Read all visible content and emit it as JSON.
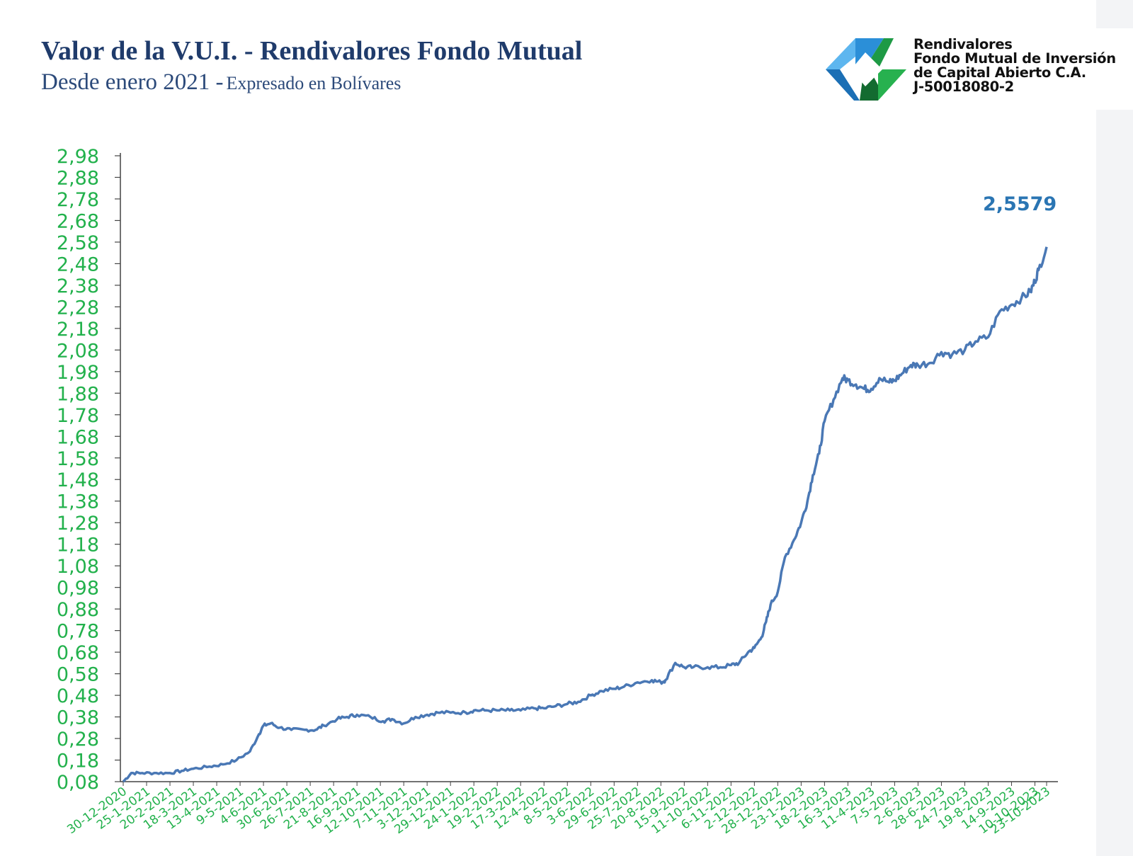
{
  "header": {
    "title": "Valor de la V.U.I. - Rendivalores Fondo Mutual",
    "subtitle_main": "Desde enero 2021 -",
    "subtitle_small": "Expresado en Bolívares"
  },
  "company": {
    "line1": "Rendivalores",
    "line2": "Fondo Mutual de Inversión",
    "line3": "de Capital Abierto C.A.",
    "line4": "J-50018080-2"
  },
  "colors": {
    "title": "#1f3b6b",
    "axis_labels": "#22b14c",
    "line": "#4a78b5",
    "annotation": "#2a75b3",
    "logo_blue": "#2b8fd8",
    "logo_green": "#1e9a45"
  },
  "chart_data": {
    "type": "line",
    "title": "Valor de la V.U.I. - Rendivalores Fondo Mutual",
    "xlabel": "",
    "ylabel": "",
    "x_range": [
      "30-12-2020",
      "23-10-2023"
    ],
    "ylim": [
      0.08,
      2.98
    ],
    "y_ticks": [
      "2,98",
      "2,88",
      "2,78",
      "2,68",
      "2,58",
      "2,48",
      "2,38",
      "2,28",
      "2,18",
      "2,08",
      "1,98",
      "1,88",
      "1,78",
      "1,68",
      "1,58",
      "1,48",
      "1,38",
      "1,28",
      "1,18",
      "1,08",
      "0,98",
      "0,88",
      "0,78",
      "0,68",
      "0,58",
      "0,48",
      "0,38",
      "0,28",
      "0,18",
      "0,08"
    ],
    "x_tick_labels": [
      "30-12-2020",
      "25-1-2021",
      "20-2-2021",
      "18-3-2021",
      "13-4-2021",
      "9-5-2021",
      "4-6-2021",
      "30-6-2021",
      "26-7-2021",
      "21-8-2021",
      "16-9-2021",
      "12-10-2021",
      "7-11-2021",
      "3-12-2021",
      "29-12-2021",
      "24-1-2022",
      "19-2-2022",
      "17-3-2022",
      "12-4-2022",
      "8-5-2022",
      "3-6-2022",
      "29-6-2022",
      "25-7-2022",
      "20-8-2022",
      "15-9-2022",
      "11-10-2022",
      "6-11-2022",
      "2-12-2022",
      "28-12-2022",
      "23-1-2023",
      "18-2-2023",
      "16-3-2023",
      "11-4-2023",
      "7-5-2023",
      "2-6-2023",
      "28-6-2023",
      "24-7-2023",
      "19-8-2023",
      "14-9-2023",
      "10-10-2023",
      "23-10-2023"
    ],
    "grid": false,
    "legend": "none",
    "series": [
      {
        "x": [
          "2020-12-30",
          "2021-01-08",
          "2021-01-20",
          "2021-02-05",
          "2021-02-20",
          "2021-03-05",
          "2021-03-18",
          "2021-04-05",
          "2021-04-20",
          "2021-05-05",
          "2021-05-20",
          "2021-05-30",
          "2021-06-04",
          "2021-06-12",
          "2021-06-22",
          "2021-07-05",
          "2021-07-20",
          "2021-08-01",
          "2021-08-10",
          "2021-08-25",
          "2021-09-05",
          "2021-09-16",
          "2021-10-01",
          "2021-10-15",
          "2021-10-25",
          "2021-11-07",
          "2021-11-20",
          "2021-12-03",
          "2021-12-15",
          "2021-12-29",
          "2022-01-15",
          "2022-01-24",
          "2022-02-05",
          "2022-02-19",
          "2022-03-05",
          "2022-03-17",
          "2022-04-01",
          "2022-04-12",
          "2022-04-25",
          "2022-05-08",
          "2022-05-20",
          "2022-06-03",
          "2022-06-15",
          "2022-06-29",
          "2022-07-10",
          "2022-07-25",
          "2022-08-10",
          "2022-08-20",
          "2022-08-25",
          "2022-09-05",
          "2022-09-15",
          "2022-09-25",
          "2022-10-11",
          "2022-10-25",
          "2022-11-06",
          "2022-11-15",
          "2022-11-25",
          "2022-12-02",
          "2022-12-10",
          "2022-12-15",
          "2022-12-20",
          "2022-12-28",
          "2023-01-05",
          "2023-01-15",
          "2023-01-23",
          "2023-01-30",
          "2023-02-05",
          "2023-02-12",
          "2023-02-18",
          "2023-02-28",
          "2023-03-10",
          "2023-03-16",
          "2023-03-25",
          "2023-04-03",
          "2023-04-11",
          "2023-04-20",
          "2023-05-01",
          "2023-05-07",
          "2023-05-15",
          "2023-05-25",
          "2023-06-02",
          "2023-06-15",
          "2023-06-28",
          "2023-07-10",
          "2023-07-24",
          "2023-08-05",
          "2023-08-19",
          "2023-09-01",
          "2023-09-14",
          "2023-09-25",
          "2023-10-05",
          "2023-10-10",
          "2023-10-14",
          "2023-10-23"
        ],
        "y": [
          0.08,
          0.12,
          0.12,
          0.12,
          0.12,
          0.13,
          0.14,
          0.15,
          0.16,
          0.18,
          0.22,
          0.3,
          0.34,
          0.35,
          0.33,
          0.32,
          0.32,
          0.32,
          0.34,
          0.37,
          0.38,
          0.39,
          0.38,
          0.36,
          0.37,
          0.35,
          0.38,
          0.39,
          0.4,
          0.4,
          0.4,
          0.41,
          0.41,
          0.41,
          0.41,
          0.41,
          0.42,
          0.42,
          0.43,
          0.44,
          0.45,
          0.48,
          0.5,
          0.51,
          0.52,
          0.54,
          0.55,
          0.54,
          0.55,
          0.63,
          0.61,
          0.61,
          0.61,
          0.61,
          0.62,
          0.63,
          0.68,
          0.7,
          0.75,
          0.82,
          0.9,
          0.96,
          1.12,
          1.2,
          1.28,
          1.38,
          1.5,
          1.6,
          1.75,
          1.85,
          1.95,
          1.94,
          1.92,
          1.9,
          1.9,
          1.95,
          1.93,
          1.94,
          1.97,
          2.01,
          2.01,
          2.02,
          2.07,
          2.06,
          2.08,
          2.12,
          2.14,
          2.26,
          2.29,
          2.32,
          2.35,
          2.4,
          2.45,
          2.5579
        ]
      }
    ],
    "annotation": {
      "text": "2,5579",
      "at": "last-point"
    }
  }
}
